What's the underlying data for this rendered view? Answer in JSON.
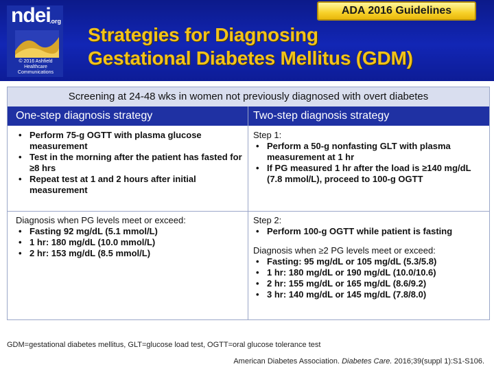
{
  "logo": {
    "text": "ndei",
    "suffix": ".org",
    "copyright": "© 2016 Ashfield Healthcare Communications"
  },
  "badge": "ADA 2016 Guidelines",
  "title": [
    "Strategies for Diagnosing",
    "Gestational Diabetes Mellitus (GDM)"
  ],
  "table": {
    "screening": "Screening at 24-48 wks in women not previously diagnosed with overt diabetes",
    "col_one": "One-step diagnosis strategy",
    "col_two": "Two-step diagnosis strategy",
    "one_step_procedure": [
      "Perform 75-g OGTT with plasma glucose measurement",
      "Test in the morning after the patient has fasted for ≥8 hrs",
      "Repeat test at 1 and 2 hours after initial measurement"
    ],
    "step1_label": "Step 1:",
    "step1_items": [
      "Perform a 50-g nonfasting GLT with plasma measurement at 1 hr",
      "If PG measured 1 hr after the load is ≥140 mg/dL (7.8 mmol/L), proceed to 100-g OGTT"
    ],
    "one_step_diag_label": "Diagnosis when PG levels meet or exceed:",
    "one_step_diag": [
      "Fasting 92 mg/dL (5.1 mmol/L)",
      "1 hr: 180 mg/dL (10.0 mmol/L)",
      "2 hr: 153 mg/dL (8.5 mmol/L)"
    ],
    "step2_label": "Step 2:",
    "step2_items": [
      "Perform 100-g OGTT while patient is fasting"
    ],
    "two_step_diag_label": "Diagnosis when ≥2 PG levels meet or exceed:",
    "two_step_diag": [
      "Fasting: 95 mg/dL or 105 mg/dL (5.3/5.8)",
      "1 hr: 180 mg/dL or 190 mg/dL (10.0/10.6)",
      "2 hr: 155 mg/dL or 165 mg/dL (8.6/9.2)",
      "3 hr: 140 mg/dL or 145 mg/dL (7.8/8.0)"
    ]
  },
  "footnote": "GDM=gestational diabetes mellitus, GLT=glucose load test, OGTT=oral glucose tolerance test",
  "citation": {
    "authors": "American Diabetes Association.",
    "journal": "Diabetes Care.",
    "details": "2016;39(suppl 1):S1-S106."
  }
}
